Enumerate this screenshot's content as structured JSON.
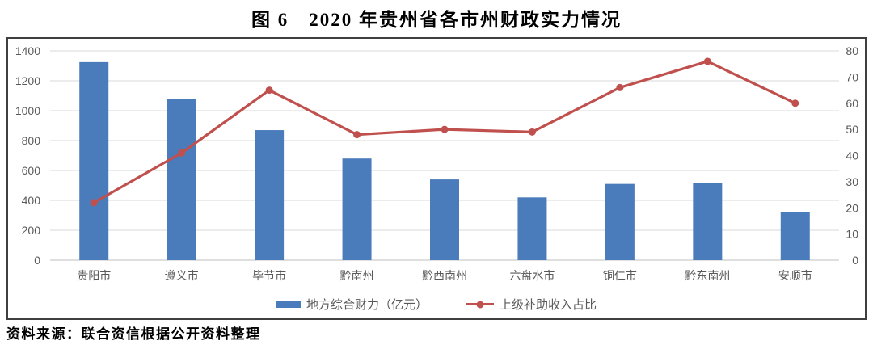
{
  "title": "图 6　2020 年贵州省各市州财政实力情况",
  "source": "资料来源：联合资信根据公开资料整理",
  "colors": {
    "bar": "#4A7CBC",
    "line": "#C0504D",
    "grid": "#D9D9D9",
    "baseline": "#BFBFBF",
    "axis_text": "#595959",
    "frame": "#3F3F3F"
  },
  "chart_data": {
    "type": "bar",
    "subtype": "bar+line combo, dual axis",
    "title": "图 6　2020 年贵州省各市州财政实力情况",
    "categories": [
      "贵阳市",
      "遵义市",
      "毕节市",
      "黔南州",
      "黔西南州",
      "六盘水市",
      "铜仁市",
      "黔东南州",
      "安顺市"
    ],
    "series": [
      {
        "name": "地方综合财力（亿元）",
        "type": "bar",
        "axis": "left",
        "values": [
          1325,
          1080,
          870,
          680,
          540,
          420,
          510,
          515,
          320
        ]
      },
      {
        "name": "上级补助收入占比",
        "type": "line",
        "axis": "right",
        "values": [
          22,
          41,
          65,
          48,
          50,
          49,
          66,
          76,
          60
        ]
      }
    ],
    "left_axis": {
      "min": 0,
      "max": 1400,
      "step": 200,
      "tick_labels": [
        "0",
        "200",
        "400",
        "600",
        "800",
        "1000",
        "1200",
        "1400"
      ]
    },
    "right_axis": {
      "min": 0,
      "max": 80,
      "step": 10,
      "tick_labels": [
        "0",
        "10",
        "20",
        "30",
        "40",
        "50",
        "60",
        "70",
        "80"
      ]
    },
    "grid": true,
    "legend_position": "bottom"
  }
}
